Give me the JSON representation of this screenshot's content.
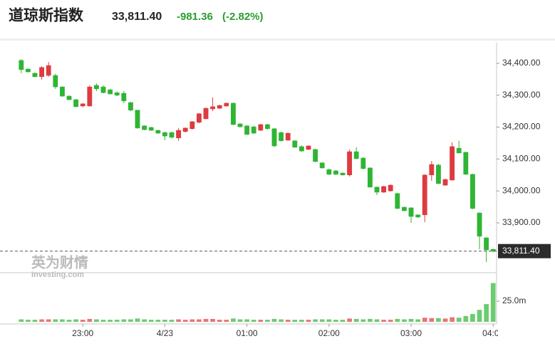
{
  "header": {
    "title": "道琼斯指数",
    "price": "33,811.40",
    "change": "-981.36",
    "change_pct": "(-2.82%)"
  },
  "watermark": {
    "cn": "英为财情",
    "en": "Investing.com"
  },
  "chart_data": {
    "type": "candlestick",
    "categories": [
      null,
      null,
      null,
      null,
      null,
      null,
      null,
      null,
      null,
      "23:00",
      null,
      null,
      null,
      null,
      null,
      null,
      null,
      null,
      null,
      null,
      null,
      "4/23",
      null,
      null,
      null,
      null,
      null,
      null,
      null,
      null,
      null,
      null,
      null,
      "01:00",
      null,
      null,
      null,
      null,
      null,
      null,
      null,
      null,
      null,
      null,
      null,
      "02:00",
      null,
      null,
      null,
      null,
      null,
      null,
      null,
      null,
      null,
      null,
      null,
      "03:00",
      null,
      null,
      null,
      null,
      null,
      null,
      null,
      null,
      null,
      null,
      null,
      "04:00"
    ],
    "open": [
      34409,
      34382,
      34369,
      34358,
      34362,
      34362,
      34326,
      34297,
      34286,
      34266,
      34266,
      34331,
      34326,
      34317,
      34308,
      34306,
      34277,
      34253,
      34204,
      34199,
      34190,
      34183,
      34183,
      34166,
      34186,
      34195,
      34215,
      34226,
      34257,
      34259,
      34266,
      34275,
      34210,
      34204,
      34201,
      34190,
      34208,
      34195,
      34183,
      34159,
      34157,
      34139,
      34130,
      34130,
      34088,
      34067,
      34063,
      34056,
      34050,
      34123,
      34103,
      34072,
      34012,
      33996,
      34000,
      33992,
      33949,
      33947,
      33925,
      33925,
      34050,
      34081,
      34018,
      34034,
      34134,
      34121,
      34052,
      33931,
      33853,
      33817
    ],
    "high": [
      34413,
      34384,
      34371,
      34391,
      34404,
      34367,
      34328,
      34300,
      34288,
      34275,
      34331,
      34337,
      34331,
      34320,
      34311,
      34313,
      34280,
      34255,
      34206,
      34201,
      34192,
      34186,
      34186,
      34197,
      34199,
      34219,
      34244,
      34262,
      34293,
      34270,
      34277,
      34277,
      34213,
      34206,
      34204,
      34210,
      34210,
      34197,
      34186,
      34183,
      34159,
      34143,
      34143,
      34132,
      34090,
      34070,
      34065,
      34058,
      34130,
      34137,
      34106,
      34074,
      34014,
      34016,
      34021,
      33994,
      33951,
      33949,
      33927,
      34052,
      34094,
      34085,
      34038,
      34152,
      34157,
      34123,
      34054,
      33933,
      33855,
      33819
    ],
    "low": [
      34369,
      34371,
      34356,
      34349,
      34358,
      34320,
      34295,
      34284,
      34262,
      34262,
      34264,
      34313,
      34306,
      34302,
      34297,
      34275,
      34250,
      34195,
      34190,
      34188,
      34179,
      34159,
      34164,
      34157,
      34183,
      34192,
      34212,
      34224,
      34250,
      34257,
      34264,
      34206,
      34199,
      34175,
      34179,
      34188,
      34192,
      34137,
      34155,
      34157,
      34135,
      34123,
      34128,
      34090,
      34070,
      34050,
      34050,
      34048,
      34045,
      34099,
      34068,
      34010,
      33987,
      33994,
      33998,
      33943,
      33936,
      33900,
      33916,
      33902,
      34032,
      34021,
      34016,
      34032,
      34117,
      34050,
      33943,
      33817,
      33777,
      33808
    ],
    "close": [
      34380,
      34373,
      34358,
      34387,
      34393,
      34326,
      34297,
      34286,
      34264,
      34273,
      34326,
      34320,
      34308,
      34304,
      34300,
      34282,
      34253,
      34197,
      34192,
      34190,
      34181,
      34172,
      34168,
      34190,
      34197,
      34217,
      34242,
      34259,
      34264,
      34268,
      34275,
      34208,
      34201,
      34177,
      34181,
      34208,
      34195,
      34141,
      34157,
      34181,
      34137,
      34125,
      34141,
      34092,
      34072,
      34052,
      34052,
      34050,
      34123,
      34101,
      34070,
      34012,
      33996,
      34014,
      34018,
      33945,
      33938,
      33920,
      33918,
      34050,
      34083,
      34023,
      34036,
      34139,
      34119,
      34052,
      33945,
      33858,
      33815,
      33811.4
    ],
    "volume": [
      3,
      2.5,
      2.5,
      3,
      3,
      3,
      3,
      2.5,
      3,
      2.5,
      3.5,
      3,
      2.5,
      2.5,
      2.5,
      3,
      3,
      4,
      3,
      2.5,
      2.5,
      2.5,
      2.5,
      3,
      2.5,
      3,
      3,
      3.5,
      3.5,
      2.5,
      2.5,
      4,
      3,
      3,
      2.5,
      2.5,
      2.5,
      3.5,
      3,
      2.5,
      2.5,
      2.5,
      2.5,
      3,
      3,
      3,
      2.5,
      2.5,
      4,
      3.5,
      3,
      3.5,
      3,
      2.5,
      2.5,
      3.5,
      3,
      3.5,
      3,
      5,
      4.5,
      4.5,
      4,
      5.5,
      5,
      7,
      9.5,
      14.5,
      21.5,
      47
    ],
    "up_color": "#dd3b40",
    "down_color": "#2fb534",
    "ylim": [
      33746,
      34460
    ],
    "yticks": [
      {
        "value": 34400,
        "label": "34,400.00"
      },
      {
        "value": 34300,
        "label": "34,300.00"
      },
      {
        "value": 34200,
        "label": "34,200.00"
      },
      {
        "value": 34100,
        "label": "34,100.00"
      },
      {
        "value": 34000,
        "label": "34,000.00"
      },
      {
        "value": 33900,
        "label": "33,900.00"
      }
    ],
    "volume_lim": [
      0,
      57.8
    ],
    "volume_ticks": [
      {
        "value": 25,
        "label": "25.0m"
      }
    ],
    "last_price": {
      "value": 33811.4,
      "label": "33,811.40"
    },
    "grid": false
  }
}
